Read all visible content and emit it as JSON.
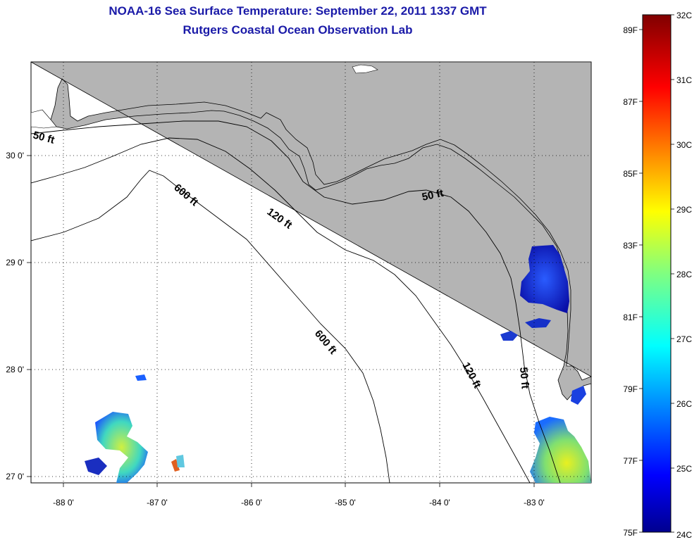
{
  "title": "NOAA-16 Sea Surface Temperature:  September 22, 2011 1337 GMT",
  "subtitle": "Rutgers Coastal Ocean Observation Lab",
  "map": {
    "x_ticks": [
      "-88 0'",
      "-87 0'",
      "-86 0'",
      "-85 0'",
      "-84 0'",
      "-83 0'"
    ],
    "y_ticks": [
      "30 0'",
      "29 0'",
      "28 0'",
      "27 0'"
    ],
    "contour_labels": [
      "50 ft",
      "600 ft",
      "120 ft",
      "50 ft",
      "600 ft",
      "120 ft",
      "50 ft"
    ],
    "land_color": "#b4b4b4",
    "water_color": "#ffffff",
    "grid": "dotted"
  },
  "colorbar": {
    "celsius_labels": [
      "32C",
      "31C",
      "30C",
      "29C",
      "28C",
      "27C",
      "26C",
      "25C",
      "24C"
    ],
    "fahrenheit_labels": [
      "89F",
      "87F",
      "85F",
      "83F",
      "81F",
      "79F",
      "77F",
      "75F"
    ],
    "colormap": "jet",
    "range_c": [
      24,
      32
    ],
    "range_f": [
      75,
      89.6
    ]
  }
}
